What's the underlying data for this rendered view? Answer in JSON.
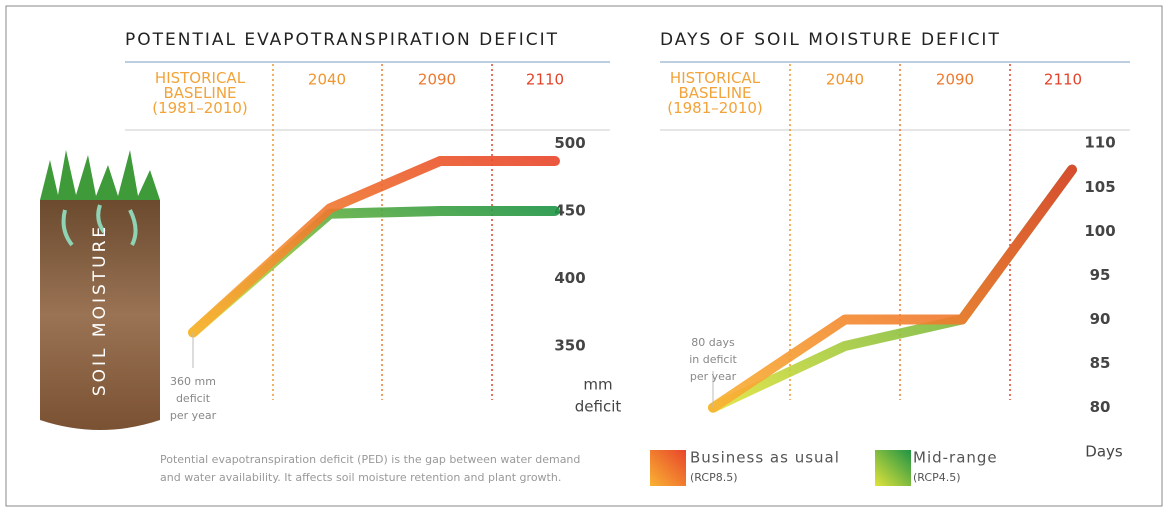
{
  "chart_data": [
    {
      "type": "line",
      "title": "POTENTIAL EVAPOTRANSPIRATION DEFICIT",
      "categories": [
        "HISTORICAL BASELINE (1981–2010)",
        "2040",
        "2090",
        "2110"
      ],
      "category_colors": [
        "#f2a33a",
        "#f0962f",
        "#ec7a2e",
        "#e2432a"
      ],
      "series": [
        {
          "name": "Business as usual",
          "code": "(RCP8.5)",
          "color": "#f07a2c",
          "values": [
            360,
            452,
            487,
            487
          ]
        },
        {
          "name": "Mid-range",
          "code": "(RCP4.5)",
          "color": "#6fb43c",
          "values": [
            360,
            448,
            450,
            450
          ]
        }
      ],
      "ylim": [
        310,
        510
      ],
      "yticks": [
        350,
        400,
        450,
        500
      ],
      "ylabel": [
        "mm",
        "deficit"
      ],
      "annotation": [
        "360 mm",
        "deficit",
        "per year"
      ]
    },
    {
      "type": "line",
      "title": "DAYS OF SOIL MOISTURE DEFICIT",
      "categories": [
        "HISTORICAL BASELINE (1981–2010)",
        "2040",
        "2090",
        "2110"
      ],
      "category_colors": [
        "#f2a33a",
        "#f0962f",
        "#ec7a2e",
        "#e2432a"
      ],
      "series": [
        {
          "name": "Business as usual",
          "code": "(RCP8.5)",
          "color": "#f07a2c",
          "values": [
            80,
            90,
            90,
            107
          ]
        },
        {
          "name": "Mid-range",
          "code": "(RCP4.5)",
          "color": "#6fb43c",
          "values": [
            80,
            87,
            90,
            107
          ]
        }
      ],
      "ylim": [
        78.6,
        111.5
      ],
      "yticks": [
        80,
        85,
        90,
        95,
        100,
        105,
        110
      ],
      "ylabel": [
        "Days"
      ],
      "annotation": [
        "80 days",
        "in deficit",
        "per year"
      ]
    }
  ],
  "illustration_label": "SOIL MOISTURE",
  "footnote": [
    "Potential evapotranspiration deficit (PED) is the gap between water demand",
    "and water availability. It affects soil moisture retention and plant growth."
  ]
}
